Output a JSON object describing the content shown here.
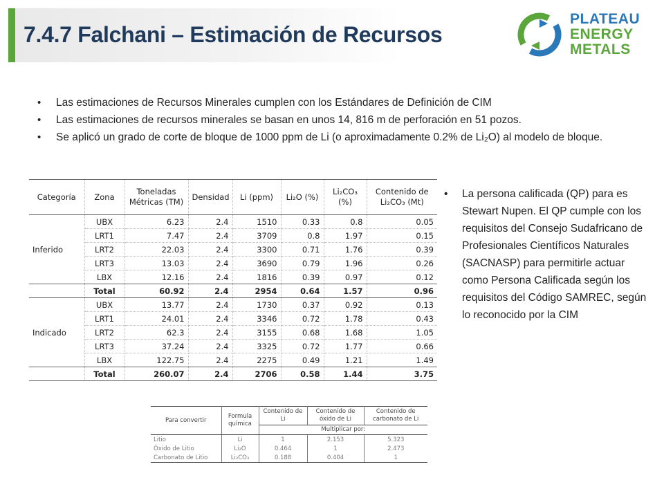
{
  "slide": {
    "title": "7.4.7 Falchani – Estimación de Recursos",
    "accent_color": "#5aa63b",
    "title_color": "#1f3a5a"
  },
  "logo": {
    "line1": "PLATEAU",
    "line2": "ENERGY",
    "line3": "METALS",
    "colors": [
      "#2b78b8",
      "#5aa63b"
    ],
    "icon": "circular-arrows-logo-icon"
  },
  "bullets": [
    "Las estimaciones de Recursos Minerales cumplen con los Estándares de Definición de CIM",
    "Las estimaciones de recursos minerales se basan en unos 14, 816 m de perforación en 51 pozos.",
    "Se aplicó un grado de corte de bloque de 1000 ppm de Li (o aproximadamente 0.2% de Li₂O) al modelo de bloque."
  ],
  "resource_table": {
    "headers": [
      "Categoría",
      "Zona",
      "Toneladas Métricas (TM)",
      "Densidad",
      "Li (ppm)",
      "Li₂O (%)",
      "Li₂CO₃ (%)",
      "Contenido de Li₂CO₃ (Mt)"
    ],
    "groups": [
      {
        "category": "Inferido",
        "rows": [
          [
            "UBX",
            "6.23",
            "2.4",
            "1510",
            "0.33",
            "0.8",
            "0.05"
          ],
          [
            "LRT1",
            "7.47",
            "2.4",
            "3709",
            "0.8",
            "1.97",
            "0.15"
          ],
          [
            "LRT2",
            "22.03",
            "2.4",
            "3300",
            "0.71",
            "1.76",
            "0.39"
          ],
          [
            "LRT3",
            "13.03",
            "2.4",
            "3690",
            "0.79",
            "1.96",
            "0.26"
          ],
          [
            "LBX",
            "12.16",
            "2.4",
            "1816",
            "0.39",
            "0.97",
            "0.12"
          ]
        ],
        "total": [
          "Total",
          "60.92",
          "2.4",
          "2954",
          "0.64",
          "1.57",
          "0.96"
        ]
      },
      {
        "category": "Indicado",
        "rows": [
          [
            "UBX",
            "13.77",
            "2.4",
            "1730",
            "0.37",
            "0.92",
            "0.13"
          ],
          [
            "LRT1",
            "24.01",
            "2.4",
            "3346",
            "0.72",
            "1.78",
            "0.43"
          ],
          [
            "LRT2",
            "62.3",
            "2.4",
            "3155",
            "0.68",
            "1.68",
            "1.05"
          ],
          [
            "LRT3",
            "37.24",
            "2.4",
            "3325",
            "0.72",
            "1.77",
            "0.66"
          ],
          [
            "LBX",
            "122.75",
            "2.4",
            "2275",
            "0.49",
            "1.21",
            "1.49"
          ]
        ],
        "total": [
          "Total",
          "260.07",
          "2.4",
          "2706",
          "0.58",
          "1.44",
          "3.75"
        ]
      }
    ]
  },
  "side_note": "La persona calificada (QP) para es Stewart Nupen. El QP cumple con los requisitos del Consejo Sudafricano de Profesionales Científicos Naturales (SACNASP) para permitirle actuar como Persona Calificada según los requisitos del Código SAMREC, según lo reconocido por la CIM",
  "conversion_table": {
    "headers": [
      "Para convertir",
      "Formula química",
      "Contenido de Li",
      "Contenido de óxido de Li",
      "Contenido de carbonato de Li"
    ],
    "subheader": "Multiplicar por:",
    "rows": [
      [
        "Litio",
        "Li",
        "1",
        "2.153",
        "5.323"
      ],
      [
        "Óxido de Litio",
        "Li₂O",
        "0.464",
        "1",
        "2.473"
      ],
      [
        "Carbonato de Litio",
        "Li₂CO₃",
        "0.188",
        "0.404",
        "1"
      ]
    ]
  }
}
